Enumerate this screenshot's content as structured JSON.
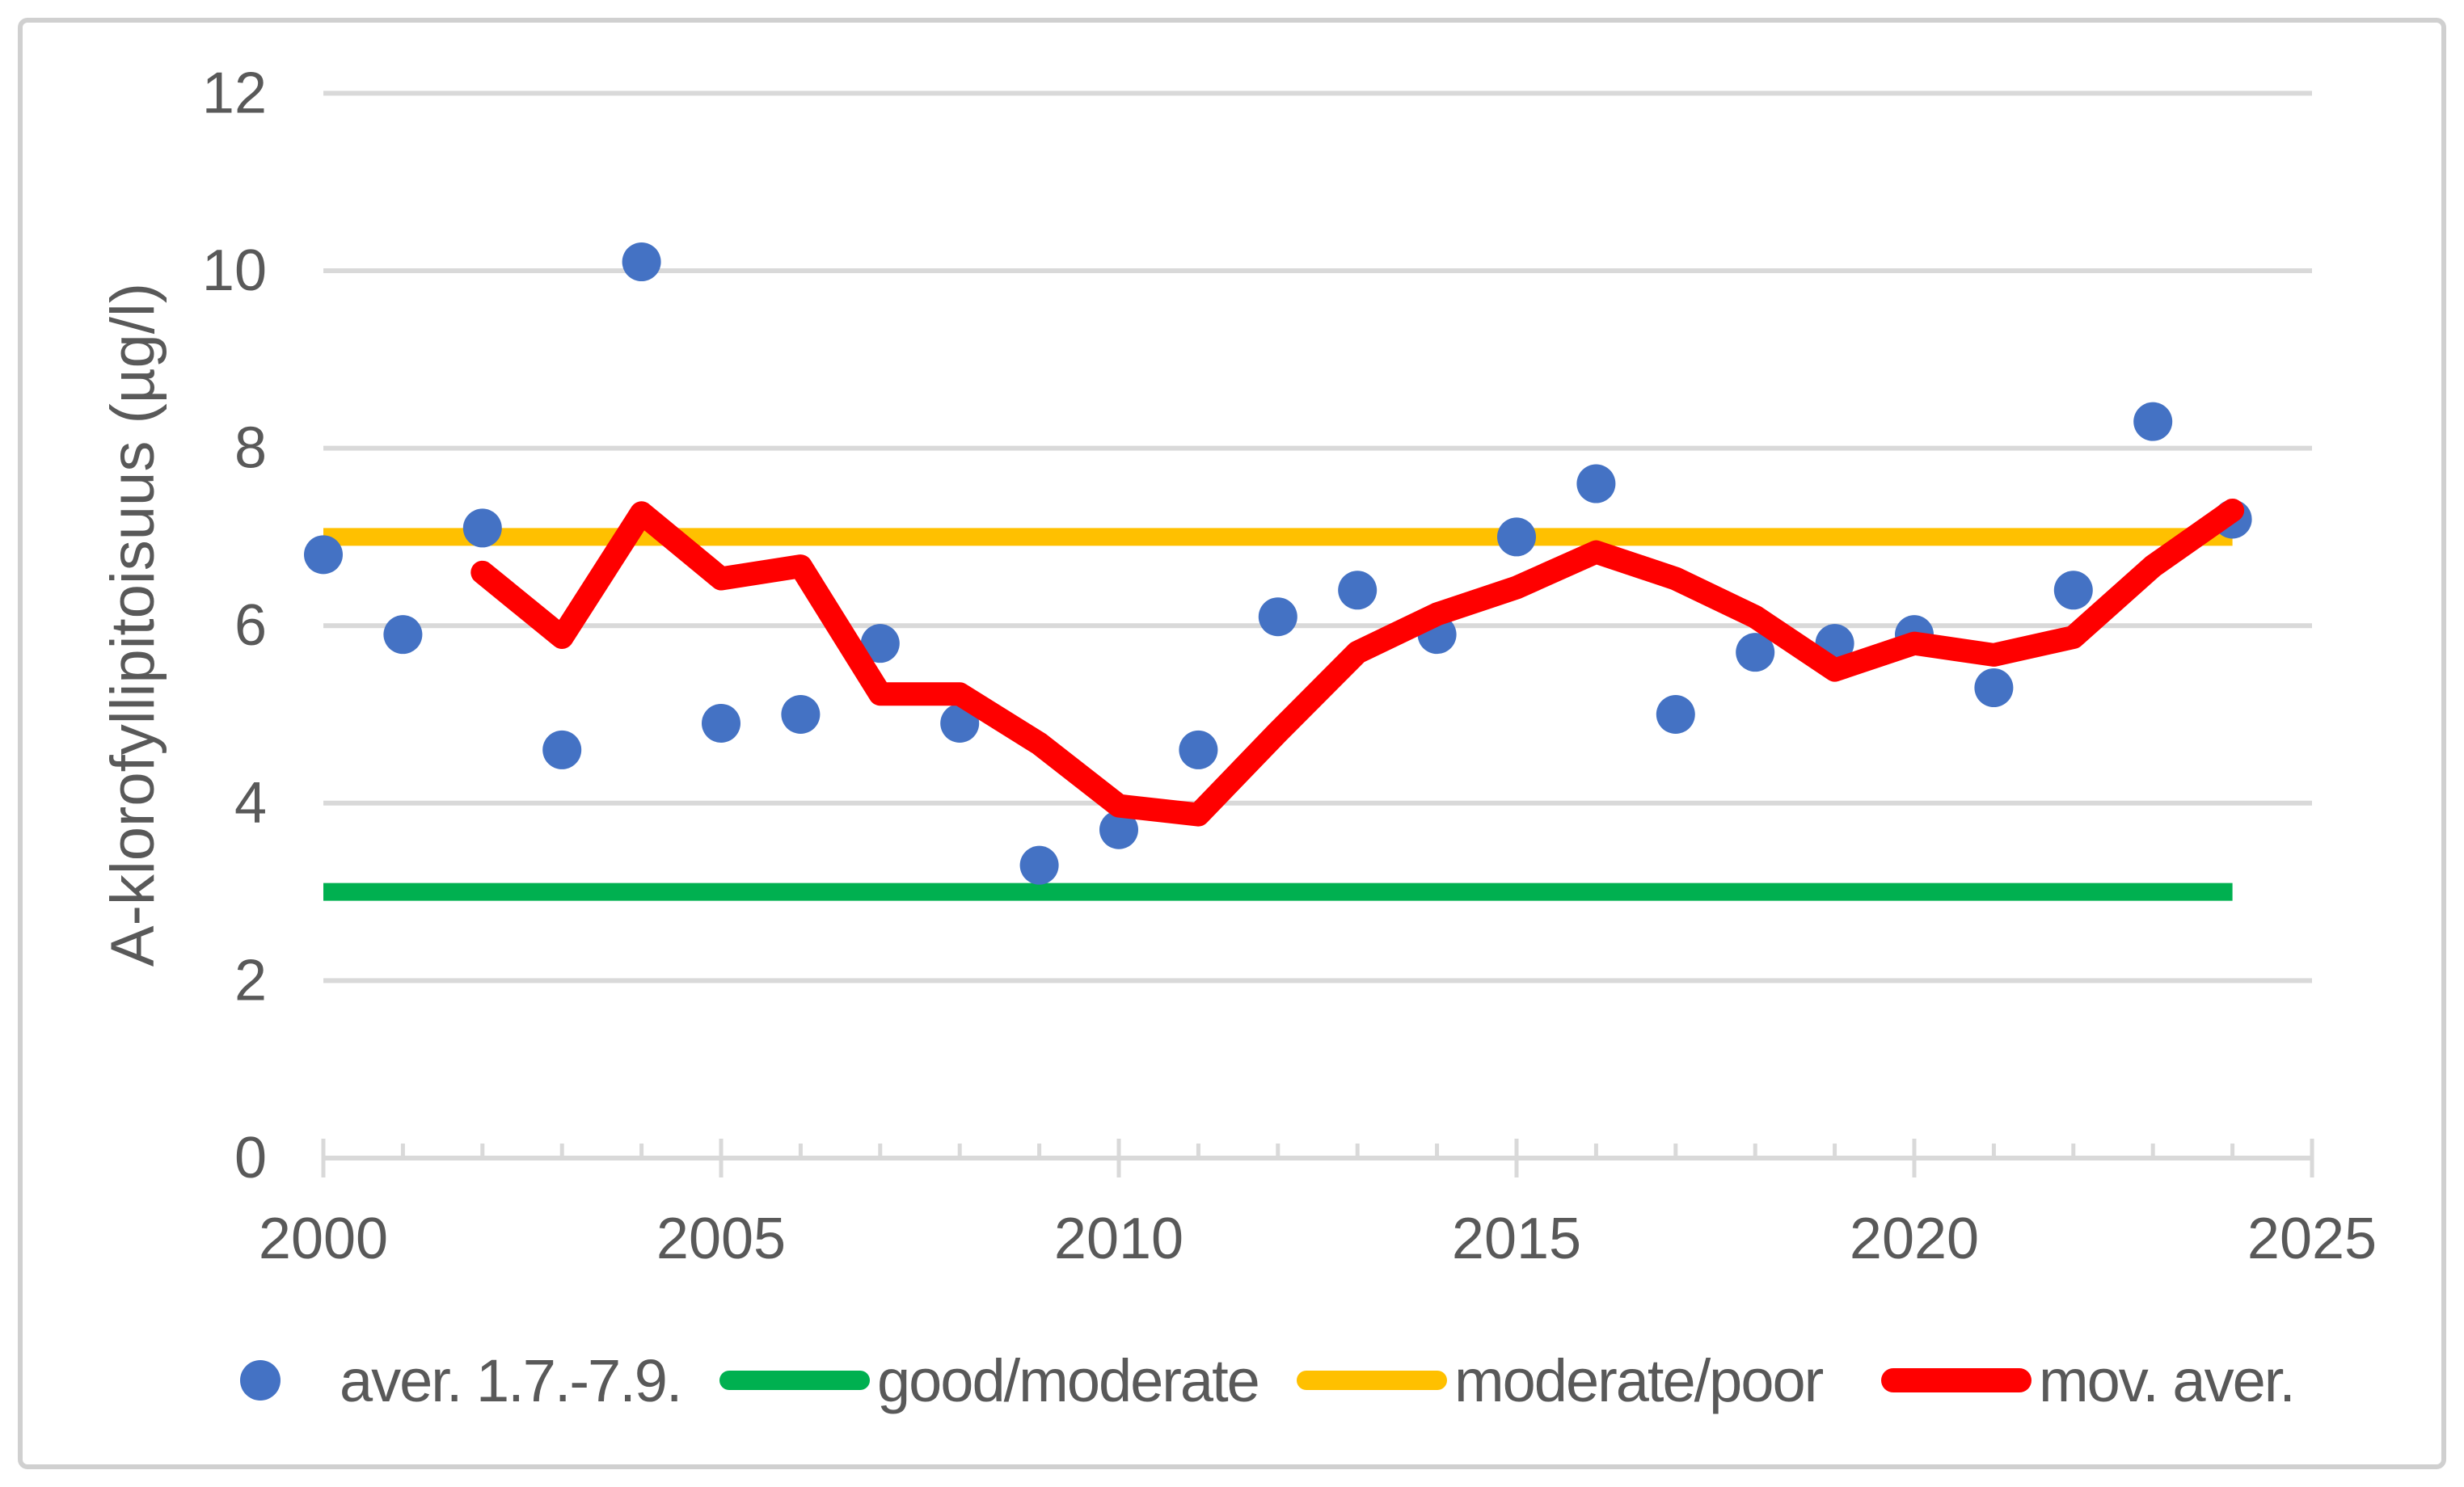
{
  "figure": {
    "background": "#FFFFFF",
    "border_color": "#D0D0D0",
    "gridline_color": "#D9D9D9",
    "tick_color": "#D9D9D9",
    "text_color": "#595959"
  },
  "chart_data": {
    "type": "scatter",
    "title": "",
    "xlabel": "",
    "ylabel": "A-klorofyllipitoisuus (µg/l)",
    "xlim": [
      2000,
      2025
    ],
    "ylim": [
      0,
      12
    ],
    "x_ticks": [
      2000,
      2005,
      2010,
      2015,
      2020,
      2025
    ],
    "y_ticks": [
      0,
      2,
      4,
      6,
      8,
      10,
      12
    ],
    "grid": "horizontal-only",
    "legend_position": "bottom",
    "years": [
      2000,
      2001,
      2002,
      2003,
      2004,
      2005,
      2006,
      2007,
      2008,
      2009,
      2010,
      2011,
      2012,
      2013,
      2014,
      2015,
      2016,
      2017,
      2018,
      2019,
      2020,
      2021,
      2022,
      2023,
      2024
    ],
    "series": [
      {
        "name": "aver. 1.7.-7.9.",
        "type": "scatter",
        "marker": "circle",
        "color": "#4472C4",
        "values": [
          6.8,
          5.9,
          7.1,
          4.6,
          10.1,
          4.9,
          5.0,
          5.8,
          4.9,
          3.3,
          3.7,
          4.6,
          6.1,
          6.4,
          5.9,
          7.0,
          7.6,
          5.0,
          5.7,
          5.8,
          5.9,
          5.3,
          6.4,
          8.3,
          7.2
        ]
      },
      {
        "name": "good/moderate",
        "type": "line",
        "color": "#00B050",
        "constant_value": 3.0,
        "x_range": [
          2000,
          2024
        ]
      },
      {
        "name": "moderate/poor",
        "type": "line",
        "color": "#FFC000",
        "constant_value": 7.0,
        "x_range": [
          2000,
          2024
        ]
      },
      {
        "name": "mov. aver.",
        "type": "line",
        "color": "#FF0000",
        "values": [
          null,
          null,
          6.6,
          5.87,
          7.27,
          6.53,
          6.67,
          5.23,
          5.23,
          4.67,
          3.97,
          3.87,
          4.8,
          5.7,
          6.13,
          6.43,
          6.83,
          6.53,
          6.1,
          5.5,
          5.8,
          5.67,
          5.87,
          6.67,
          7.3
        ]
      }
    ]
  }
}
